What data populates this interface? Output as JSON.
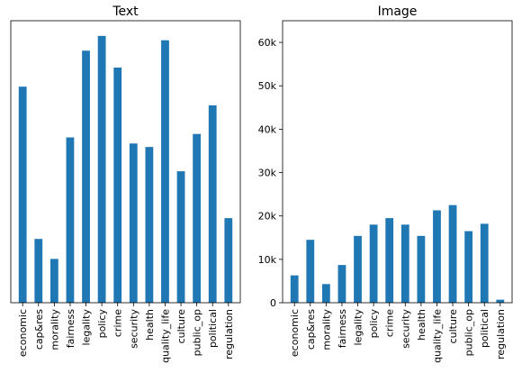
{
  "chart_data": [
    {
      "type": "bar",
      "title": "Text",
      "categories": [
        "economic",
        "cap&res",
        "morality",
        "fairness",
        "legality",
        "policy",
        "crime",
        "security",
        "health",
        "quality_life",
        "culture",
        "public_op",
        "political",
        "regulation"
      ],
      "values": [
        49800,
        14700,
        10100,
        38100,
        58100,
        61500,
        54200,
        36700,
        35900,
        60500,
        30300,
        38900,
        45500,
        19500
      ],
      "ylim": [
        0,
        65000
      ],
      "yticks": [],
      "ytick_labels": [],
      "bar_color": "#1f77b4",
      "xlabel": "",
      "ylabel": ""
    },
    {
      "type": "bar",
      "title": "Image",
      "categories": [
        "economic",
        "cap&res",
        "morality",
        "fairness",
        "legality",
        "policy",
        "crime",
        "security",
        "health",
        "quality_life",
        "culture",
        "public_op",
        "political",
        "regulation"
      ],
      "values": [
        6300,
        14500,
        4300,
        8700,
        15400,
        18000,
        19500,
        18000,
        15400,
        21300,
        22500,
        16500,
        18200,
        700
      ],
      "ylim": [
        0,
        65000
      ],
      "yticks": [
        0,
        10000,
        20000,
        30000,
        40000,
        50000,
        60000
      ],
      "ytick_labels": [
        "0",
        "10k",
        "20k",
        "30k",
        "40k",
        "50k",
        "60k"
      ],
      "bar_color": "#1f77b4",
      "xlabel": "",
      "ylabel": ""
    }
  ]
}
